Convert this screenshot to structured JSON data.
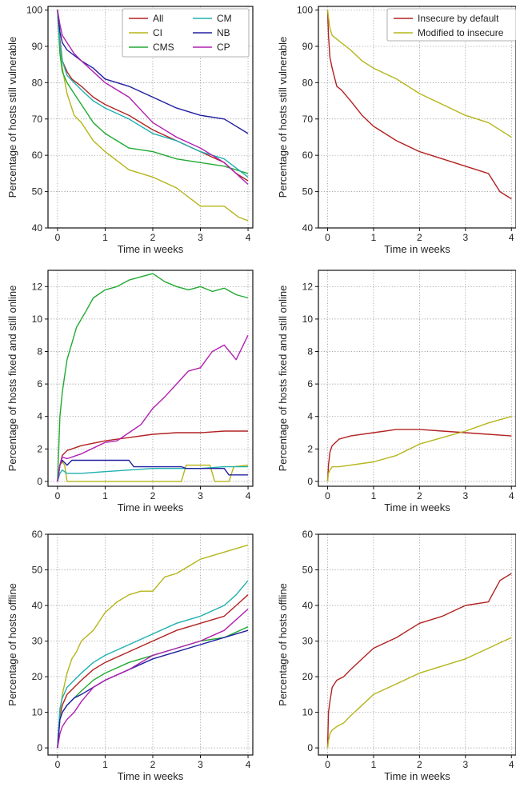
{
  "colors": {
    "All": "#b22222",
    "CI": "#b5b51a",
    "CMS": "#22aa33",
    "CM": "#20b0b0",
    "NB": "#2020a0",
    "CP": "#b020b0",
    "Insecure by default": "#b22222",
    "Modified to insecure": "#b5b51a"
  },
  "chart_data": [
    {
      "type": "line",
      "xlabel": "Time in weeks",
      "ylabel": "Percentage of hosts still vulnerable",
      "xlim": [
        -0.2,
        4.1
      ],
      "ylim": [
        40,
        101
      ],
      "xticks": [
        "0",
        "1",
        "2",
        "3",
        "4"
      ],
      "yticks": [
        "40",
        "50",
        "60",
        "70",
        "80",
        "90",
        "100"
      ],
      "grid": true,
      "legend": "top-right, 2 columns",
      "series": [
        {
          "name": "All",
          "x": [
            0,
            0.05,
            0.1,
            0.2,
            0.3,
            0.5,
            0.75,
            1,
            1.5,
            2,
            2.5,
            3,
            3.5,
            3.75,
            4
          ],
          "y": [
            100,
            92,
            86,
            83,
            81,
            79,
            76,
            74,
            71,
            67,
            64,
            61,
            58,
            55,
            53
          ]
        },
        {
          "name": "CI",
          "x": [
            0,
            0.05,
            0.1,
            0.2,
            0.35,
            0.5,
            0.75,
            1,
            1.5,
            2,
            2.5,
            3,
            3.5,
            3.8,
            4
          ],
          "y": [
            100,
            89,
            84,
            77,
            71,
            69,
            64,
            61,
            56,
            54,
            51,
            46,
            46,
            43,
            42
          ]
        },
        {
          "name": "CMS",
          "x": [
            0,
            0.05,
            0.1,
            0.2,
            0.35,
            0.5,
            0.75,
            1,
            1.5,
            2,
            2.5,
            3,
            3.5,
            4
          ],
          "y": [
            100,
            88,
            83,
            80,
            77,
            74,
            69,
            66,
            62,
            61,
            59,
            58,
            57,
            55
          ]
        },
        {
          "name": "CM",
          "x": [
            0,
            0.05,
            0.1,
            0.2,
            0.35,
            0.5,
            0.75,
            1,
            1.5,
            2,
            2.5,
            3,
            3.5,
            4
          ],
          "y": [
            100,
            91,
            86,
            82,
            80,
            78,
            75,
            73,
            70,
            66,
            64,
            61,
            59,
            54
          ]
        },
        {
          "name": "NB",
          "x": [
            0,
            0.05,
            0.1,
            0.2,
            0.5,
            0.75,
            1,
            1.5,
            2,
            2.5,
            3,
            3.5,
            4
          ],
          "y": [
            100,
            94,
            91,
            89,
            86,
            84,
            81,
            79,
            76,
            73,
            71,
            70,
            66
          ]
        },
        {
          "name": "CP",
          "x": [
            0,
            0.05,
            0.1,
            0.2,
            0.35,
            0.5,
            0.75,
            1,
            1.5,
            2,
            2.5,
            3,
            3.5,
            4
          ],
          "y": [
            100,
            96,
            93,
            91,
            88,
            86,
            83,
            80,
            76,
            69,
            65,
            62,
            58,
            52
          ]
        }
      ]
    },
    {
      "type": "line",
      "xlabel": "Time in weeks",
      "ylabel": "Percentage of hosts still vulnerable",
      "xlim": [
        -0.2,
        4.1
      ],
      "ylim": [
        40,
        101
      ],
      "xticks": [
        "0",
        "1",
        "2",
        "3",
        "4"
      ],
      "yticks": [
        "40",
        "50",
        "60",
        "70",
        "80",
        "90",
        "100"
      ],
      "grid": true,
      "legend": "top-right",
      "series": [
        {
          "name": "Insecure by default",
          "x": [
            0,
            0.02,
            0.05,
            0.1,
            0.2,
            0.3,
            0.5,
            0.75,
            1,
            1.5,
            2,
            2.5,
            3,
            3.5,
            3.6,
            3.75,
            4
          ],
          "y": [
            100,
            93,
            87,
            84,
            79,
            78,
            75,
            71,
            68,
            64,
            61,
            59,
            57,
            55,
            53,
            50,
            48
          ]
        },
        {
          "name": "Modified to insecure",
          "x": [
            0,
            0.02,
            0.05,
            0.1,
            0.2,
            0.3,
            0.5,
            0.75,
            1,
            1.5,
            2,
            2.5,
            3,
            3.5,
            4
          ],
          "y": [
            100,
            98,
            95,
            93,
            92,
            91,
            89,
            86,
            84,
            81,
            77,
            74,
            71,
            69,
            65
          ]
        }
      ]
    },
    {
      "type": "line",
      "xlabel": "Time in weeks",
      "ylabel": "Percentage of hosts fixed and still online",
      "xlim": [
        -0.2,
        4.1
      ],
      "ylim": [
        -0.3,
        13
      ],
      "xticks": [
        "0",
        "1",
        "2",
        "3",
        "4"
      ],
      "yticks": [
        "0",
        "2",
        "4",
        "6",
        "8",
        "10",
        "12"
      ],
      "grid": true,
      "series": [
        {
          "name": "All",
          "x": [
            0,
            0.05,
            0.1,
            0.2,
            0.5,
            1,
            1.5,
            2,
            2.5,
            3,
            3.5,
            4
          ],
          "y": [
            0,
            1.0,
            1.6,
            1.9,
            2.2,
            2.5,
            2.7,
            2.9,
            3.0,
            3.0,
            3.1,
            3.1
          ]
        },
        {
          "name": "CI",
          "x": [
            0,
            0.05,
            0.1,
            0.15,
            0.2,
            1.0,
            2.0,
            2.6,
            2.7,
            3.2,
            3.3,
            3.6,
            3.7,
            4.0
          ],
          "y": [
            0,
            1.0,
            1.2,
            1.0,
            0,
            0,
            0,
            0,
            1.0,
            1.0,
            0,
            0,
            0.9,
            1.0
          ]
        },
        {
          "name": "CMS",
          "x": [
            0,
            0.05,
            0.1,
            0.15,
            0.2,
            0.3,
            0.4,
            0.5,
            0.6,
            0.75,
            1,
            1.25,
            1.5,
            1.75,
            2,
            2.25,
            2.5,
            2.75,
            3,
            3.25,
            3.5,
            3.75,
            4
          ],
          "y": [
            0,
            4.0,
            5.5,
            6.5,
            7.5,
            8.5,
            9.5,
            10.0,
            10.5,
            11.3,
            11.8,
            12.0,
            12.4,
            12.6,
            12.8,
            12.3,
            12.0,
            11.8,
            12.0,
            11.7,
            11.9,
            11.5,
            11.3
          ]
        },
        {
          "name": "CM",
          "x": [
            0,
            0.05,
            0.1,
            0.2,
            0.5,
            1,
            1.5,
            2,
            2.5,
            3,
            3.5,
            4
          ],
          "y": [
            0,
            0.5,
            0.7,
            0.5,
            0.5,
            0.6,
            0.7,
            0.8,
            0.8,
            0.8,
            0.9,
            0.9
          ]
        },
        {
          "name": "NB",
          "x": [
            0,
            0.05,
            0.1,
            0.2,
            0.3,
            0.5,
            0.6,
            1.0,
            1.5,
            1.6,
            2.6,
            2.7,
            3.5,
            3.6,
            4.0
          ],
          "y": [
            0,
            1.0,
            1.3,
            1.0,
            1.3,
            1.3,
            1.3,
            1.3,
            1.3,
            0.9,
            0.9,
            0.8,
            0.8,
            0.4,
            0.4
          ]
        },
        {
          "name": "CP",
          "x": [
            0,
            0.05,
            0.1,
            0.2,
            0.5,
            1.0,
            1.25,
            1.5,
            1.75,
            2.0,
            2.25,
            2.5,
            2.75,
            3.0,
            3.25,
            3.5,
            3.75,
            4.0
          ],
          "y": [
            0,
            1.0,
            1.5,
            1.4,
            1.7,
            2.4,
            2.5,
            3.0,
            3.5,
            4.5,
            5.2,
            6.0,
            6.8,
            7.0,
            8.0,
            8.4,
            7.5,
            9.0
          ]
        }
      ]
    },
    {
      "type": "line",
      "xlabel": "Time in weeks",
      "ylabel": "Percentage of hosts fixed and still online",
      "xlim": [
        -0.2,
        4.1
      ],
      "ylim": [
        -0.3,
        13
      ],
      "xticks": [
        "0",
        "1",
        "2",
        "3",
        "4"
      ],
      "yticks": [
        "0",
        "2",
        "4",
        "6",
        "8",
        "10",
        "12"
      ],
      "grid": true,
      "series": [
        {
          "name": "Insecure by default",
          "x": [
            0,
            0.02,
            0.05,
            0.1,
            0.25,
            0.5,
            1,
            1.5,
            2,
            2.5,
            3,
            3.5,
            4
          ],
          "y": [
            0,
            1.0,
            1.8,
            2.2,
            2.6,
            2.8,
            3.0,
            3.2,
            3.2,
            3.1,
            3.0,
            2.9,
            2.8
          ]
        },
        {
          "name": "Modified to insecure",
          "x": [
            0,
            0.02,
            0.05,
            0.1,
            0.25,
            0.5,
            1,
            1.5,
            2,
            2.5,
            3,
            3.5,
            4
          ],
          "y": [
            0,
            0.5,
            0.7,
            0.9,
            0.9,
            1.0,
            1.2,
            1.6,
            2.3,
            2.7,
            3.1,
            3.6,
            4.0
          ]
        }
      ]
    },
    {
      "type": "line",
      "xlabel": "Time in weeks",
      "ylabel": "Percentage of hosts offline",
      "xlim": [
        -0.2,
        4.1
      ],
      "ylim": [
        -2,
        60
      ],
      "xticks": [
        "0",
        "1",
        "2",
        "3",
        "4"
      ],
      "yticks": [
        "0",
        "10",
        "20",
        "30",
        "40",
        "50",
        "60"
      ],
      "grid": true,
      "series": [
        {
          "name": "All",
          "x": [
            0,
            0.05,
            0.1,
            0.2,
            0.35,
            0.5,
            0.75,
            1,
            1.5,
            2,
            2.5,
            3,
            3.5,
            3.75,
            4
          ],
          "y": [
            0,
            9,
            12,
            15,
            17,
            19,
            22,
            24,
            27,
            30,
            33,
            35,
            37,
            40,
            43
          ]
        },
        {
          "name": "CI",
          "x": [
            0,
            0.05,
            0.1,
            0.2,
            0.3,
            0.4,
            0.5,
            0.75,
            1,
            1.25,
            1.5,
            1.75,
            2,
            2.25,
            2.5,
            2.75,
            3,
            3.5,
            4
          ],
          "y": [
            0,
            10,
            15,
            21,
            25,
            27,
            30,
            33,
            38,
            41,
            43,
            44,
            44,
            48,
            49,
            51,
            53,
            55,
            57
          ]
        },
        {
          "name": "CMS",
          "x": [
            0,
            0.05,
            0.1,
            0.2,
            0.35,
            0.5,
            0.75,
            1,
            1.5,
            2,
            2.5,
            3,
            3.5,
            4
          ],
          "y": [
            0,
            8,
            10,
            12,
            14,
            16,
            19,
            21,
            24,
            26,
            28,
            30,
            31,
            34
          ]
        },
        {
          "name": "CM",
          "x": [
            0,
            0.05,
            0.1,
            0.2,
            0.35,
            0.5,
            0.75,
            1,
            1.5,
            2,
            2.5,
            3,
            3.5,
            3.75,
            4
          ],
          "y": [
            0,
            11,
            14,
            17,
            19,
            21,
            24,
            26,
            29,
            32,
            35,
            37,
            40,
            43,
            47
          ]
        },
        {
          "name": "NB",
          "x": [
            0,
            0.05,
            0.1,
            0.2,
            0.35,
            0.5,
            0.75,
            1,
            1.5,
            2,
            2.5,
            3,
            3.5,
            4
          ],
          "y": [
            0,
            8,
            10,
            12,
            14,
            15,
            17,
            19,
            22,
            25,
            27,
            29,
            31,
            33
          ]
        },
        {
          "name": "CP",
          "x": [
            0,
            0.05,
            0.1,
            0.2,
            0.35,
            0.5,
            0.75,
            1,
            1.5,
            2,
            2.5,
            3,
            3.5,
            4
          ],
          "y": [
            0,
            4,
            6,
            8,
            10,
            13,
            17,
            19,
            22,
            26,
            28,
            30,
            33,
            39
          ]
        }
      ]
    },
    {
      "type": "line",
      "xlabel": "Time in weeks",
      "ylabel": "Percentage of hosts offline",
      "xlim": [
        -0.2,
        4.1
      ],
      "ylim": [
        -2,
        60
      ],
      "xticks": [
        "0",
        "1",
        "2",
        "3",
        "4"
      ],
      "yticks": [
        "0",
        "10",
        "20",
        "30",
        "40",
        "50",
        "60"
      ],
      "grid": true,
      "series": [
        {
          "name": "Insecure by default",
          "x": [
            0,
            0.02,
            0.05,
            0.1,
            0.2,
            0.35,
            0.5,
            0.75,
            1,
            1.5,
            2,
            2.5,
            3,
            3.5,
            3.75,
            4
          ],
          "y": [
            0,
            10,
            13,
            17,
            19,
            20,
            22,
            25,
            28,
            31,
            35,
            37,
            40,
            41,
            47,
            49
          ]
        },
        {
          "name": "Modified to insecure",
          "x": [
            0,
            0.02,
            0.05,
            0.1,
            0.2,
            0.35,
            0.5,
            0.75,
            1,
            1.5,
            2,
            2.5,
            3,
            3.5,
            4
          ],
          "y": [
            0,
            2,
            4,
            5,
            6,
            7,
            9,
            12,
            15,
            18,
            21,
            23,
            25,
            28,
            31
          ]
        }
      ]
    }
  ]
}
